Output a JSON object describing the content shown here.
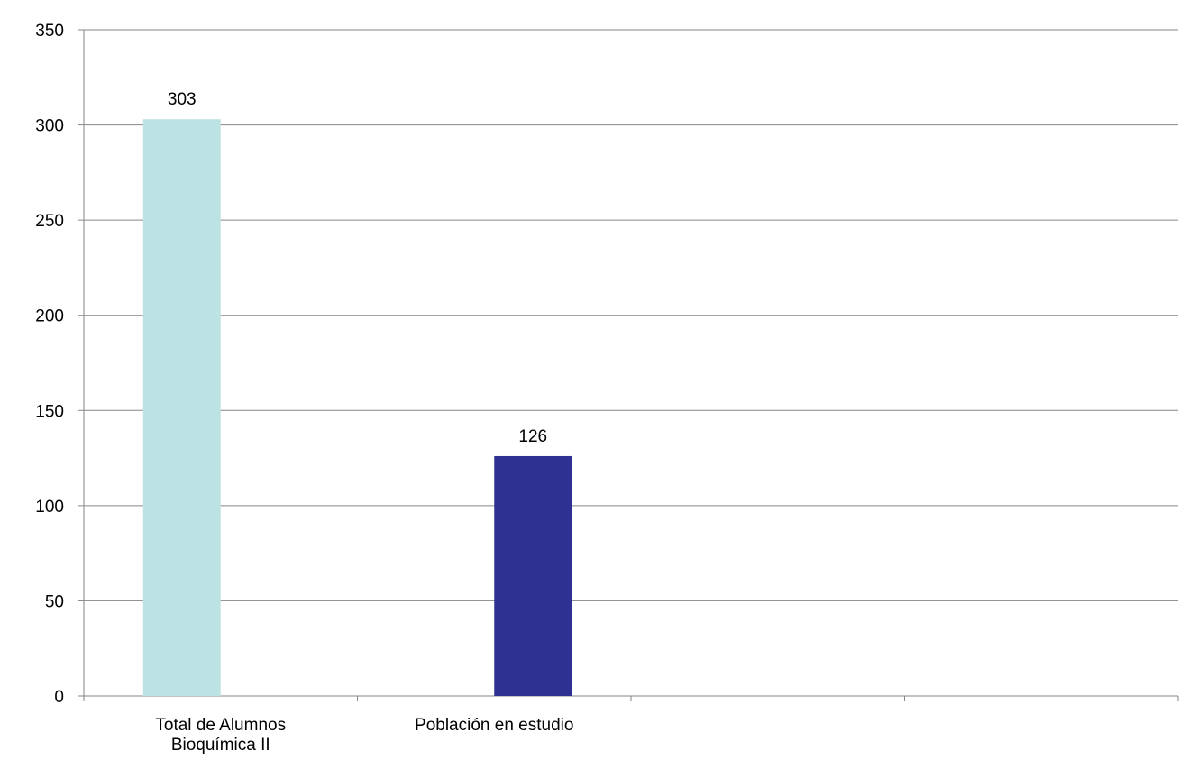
{
  "chart_data": {
    "type": "bar",
    "categories": [
      "Total de Alumnos Bioquímica II",
      "Población en estudio",
      null,
      null
    ],
    "series": [
      {
        "color": "#bde2e4",
        "values": [
          303,
          null,
          null,
          null
        ]
      },
      {
        "color": "#2e3192",
        "values": [
          null,
          126,
          null,
          null
        ]
      }
    ],
    "ylim": [
      0,
      350
    ],
    "yticks": [
      0,
      50,
      100,
      150,
      200,
      250,
      300,
      350
    ],
    "grid": true
  }
}
